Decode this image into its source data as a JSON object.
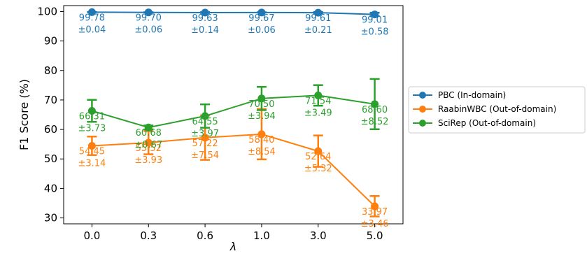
{
  "chart_data": {
    "type": "line",
    "title": "",
    "xlabel": "λ",
    "ylabel": "F1 Score (%)",
    "categories": [
      "0.0",
      "0.3",
      "0.6",
      "1.0",
      "3.0",
      "5.0"
    ],
    "ylim": [
      28,
      102
    ],
    "yticks": [
      "30",
      "40",
      "50",
      "60",
      "70",
      "80",
      "90",
      "100"
    ],
    "grid": false,
    "legend_position": "right",
    "series": [
      {
        "name": "PBC (In-domain)",
        "color": "#1f77b4",
        "values": [
          99.78,
          99.7,
          99.63,
          99.67,
          99.61,
          99.01
        ],
        "errors": [
          0.04,
          0.06,
          0.14,
          0.06,
          0.21,
          0.58
        ],
        "value_labels": [
          "99.78",
          "99.70",
          "99.63",
          "99.67",
          "99.61",
          "99.01"
        ],
        "error_labels": [
          "±0.04",
          "±0.06",
          "±0.14",
          "±0.06",
          "±0.21",
          "±0.58"
        ]
      },
      {
        "name": "RaabinWBC (Out-of-domain)",
        "color": "#ff7f0e",
        "values": [
          54.45,
          55.52,
          57.22,
          58.4,
          52.64,
          33.97
        ],
        "errors": [
          3.14,
          3.93,
          7.54,
          8.54,
          5.32,
          3.46
        ],
        "value_labels": [
          "54.45",
          "55.52",
          "57.22",
          "58.40",
          "52.64",
          "33.97"
        ],
        "error_labels": [
          "±3.14",
          "±3.93",
          "±7.54",
          "±8.54",
          "±5.32",
          "±3.46"
        ]
      },
      {
        "name": "SciRep (Out-of-domain)",
        "color": "#2ca02c",
        "values": [
          66.31,
          60.68,
          64.55,
          70.5,
          71.54,
          68.6
        ],
        "errors": [
          3.73,
          0.67,
          3.97,
          3.94,
          3.49,
          8.52
        ],
        "value_labels": [
          "66.31",
          "60.68",
          "64.55",
          "70.50",
          "71.54",
          "68.60"
        ],
        "error_labels": [
          "±3.73",
          "±0.67",
          "±3.97",
          "±3.94",
          "±3.49",
          "±8.52"
        ]
      }
    ]
  }
}
